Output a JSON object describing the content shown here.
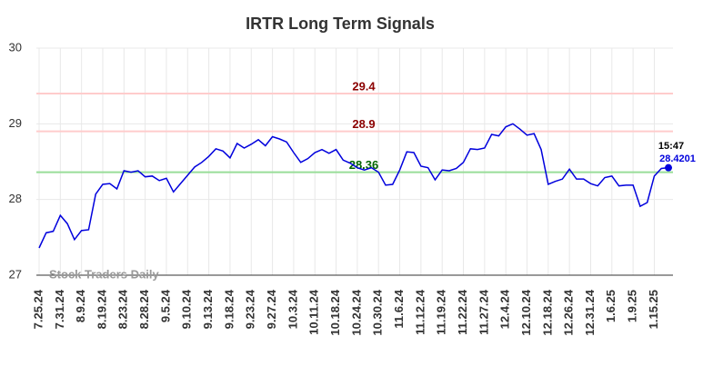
{
  "chart_data": {
    "type": "line",
    "title": "IRTR Long Term Signals",
    "categories": [
      "7.25.24",
      null,
      null,
      "7.31.24",
      null,
      null,
      "8.9.24",
      null,
      null,
      "8.19.24",
      null,
      null,
      "8.23.24",
      null,
      null,
      "8.28.24",
      null,
      null,
      "9.5.24",
      null,
      null,
      "9.10.24",
      null,
      null,
      "9.13.24",
      null,
      null,
      "9.18.24",
      null,
      null,
      "9.23.24",
      null,
      null,
      "9.27.24",
      null,
      null,
      "10.3.24",
      null,
      null,
      "10.11.24",
      null,
      null,
      "10.18.24",
      null,
      null,
      "10.24.24",
      null,
      null,
      "10.30.24",
      null,
      null,
      "11.6.24",
      null,
      null,
      "11.12.24",
      null,
      null,
      "11.19.24",
      null,
      null,
      "11.22.24",
      null,
      null,
      "11.27.24",
      null,
      null,
      "12.4.24",
      null,
      null,
      "12.10.24",
      null,
      null,
      "12.18.24",
      null,
      null,
      "12.26.24",
      null,
      null,
      "12.31.24",
      null,
      null,
      "1.6.25",
      null,
      null,
      "1.9.25",
      null,
      null,
      "1.15.25",
      null,
      null
    ],
    "values": [
      27.36,
      27.56,
      27.58,
      27.79,
      27.68,
      27.47,
      27.59,
      27.6,
      28.07,
      28.2,
      28.21,
      28.14,
      28.38,
      28.36,
      28.38,
      28.3,
      28.31,
      28.25,
      28.28,
      28.1,
      28.21,
      28.32,
      28.43,
      28.49,
      28.57,
      28.67,
      28.64,
      28.55,
      28.74,
      28.68,
      28.73,
      28.79,
      28.71,
      28.83,
      28.8,
      28.76,
      28.62,
      28.49,
      28.54,
      28.62,
      28.66,
      28.61,
      28.66,
      28.52,
      28.48,
      28.42,
      28.39,
      28.42,
      28.36,
      28.19,
      28.2,
      28.39,
      28.63,
      28.62,
      28.44,
      28.42,
      28.26,
      28.39,
      28.38,
      28.41,
      28.49,
      28.67,
      28.66,
      28.68,
      28.86,
      28.84,
      28.96,
      29.0,
      28.93,
      28.85,
      28.87,
      28.66,
      28.2,
      28.24,
      28.27,
      28.4,
      28.27,
      28.27,
      28.21,
      28.18,
      28.29,
      28.31,
      28.18,
      28.19,
      28.19,
      27.91,
      27.96,
      28.31,
      28.41,
      28.4201
    ],
    "color": "#0000dd",
    "ylim": [
      27,
      30
    ],
    "yticks": [
      27,
      28,
      29,
      30
    ],
    "grid": true,
    "reference_lines": [
      {
        "value": 29.4,
        "color": "#ffcccc",
        "label_color": "#8b0000"
      },
      {
        "value": 28.9,
        "color": "#ffcccc",
        "label_color": "#8b0000"
      },
      {
        "value": 28.36,
        "color": "#99dd99",
        "label_color": "#006400"
      }
    ],
    "last_time": "15:47",
    "watermark": "Stock Traders Daily"
  }
}
